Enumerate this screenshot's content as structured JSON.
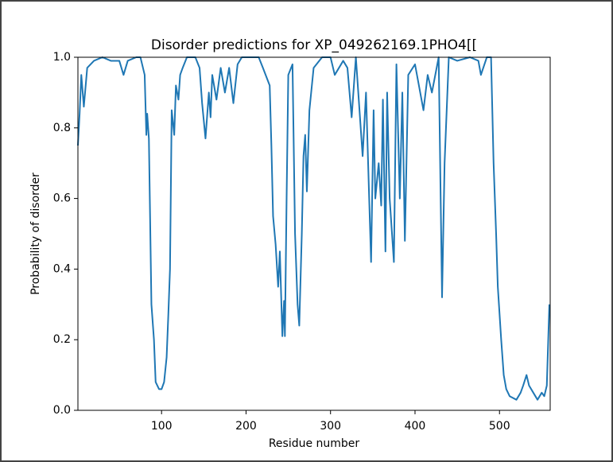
{
  "chart_data": {
    "type": "line",
    "title": "Disorder predictions for XP_049262169.1PHO4[[",
    "xlabel": "Residue number",
    "ylabel": "Probability of disorder",
    "color": "#1f77b4",
    "xlim": [
      1,
      560
    ],
    "ylim": [
      0,
      1
    ],
    "xticks": [
      100,
      200,
      300,
      400,
      500
    ],
    "yticks": [
      {
        "value": 0,
        "label": "0.0"
      },
      {
        "value": 0.2,
        "label": "0.2"
      },
      {
        "value": 0.4,
        "label": "0.4"
      },
      {
        "value": 0.6,
        "label": "0.6"
      },
      {
        "value": 0.8,
        "label": "0.8"
      },
      {
        "value": 1,
        "label": "1.0"
      }
    ],
    "x": [
      1,
      3,
      5,
      8,
      12,
      20,
      30,
      40,
      50,
      55,
      60,
      70,
      75,
      80,
      82,
      83,
      85,
      88,
      91,
      93,
      97,
      100,
      103,
      106,
      108,
      110,
      112,
      115,
      117,
      120,
      122,
      125,
      130,
      140,
      145,
      148,
      152,
      156,
      158,
      160,
      165,
      170,
      175,
      180,
      185,
      190,
      195,
      205,
      215,
      220,
      228,
      230,
      232,
      235,
      238,
      240,
      243,
      245,
      246,
      248,
      250,
      255,
      258,
      261,
      263,
      266,
      268,
      270,
      272,
      275,
      280,
      290,
      300,
      305,
      315,
      320,
      325,
      330,
      338,
      342,
      348,
      351,
      353,
      357,
      360,
      362,
      365,
      367,
      370,
      375,
      378,
      382,
      385,
      388,
      392,
      400,
      410,
      415,
      420,
      428,
      432,
      435,
      440,
      450,
      465,
      475,
      478,
      485,
      490,
      493,
      496,
      498,
      502,
      505,
      508,
      512,
      520,
      525,
      528,
      532,
      535,
      540,
      545,
      550,
      553,
      556,
      559
    ],
    "values": [
      0.75,
      0.84,
      0.95,
      0.86,
      0.97,
      0.99,
      1.0,
      0.99,
      0.99,
      0.95,
      0.99,
      1.0,
      1.0,
      0.95,
      0.78,
      0.84,
      0.77,
      0.3,
      0.2,
      0.08,
      0.06,
      0.06,
      0.08,
      0.15,
      0.27,
      0.4,
      0.85,
      0.78,
      0.92,
      0.88,
      0.95,
      0.97,
      1.0,
      1.0,
      0.97,
      0.87,
      0.77,
      0.9,
      0.83,
      0.95,
      0.88,
      0.97,
      0.9,
      0.97,
      0.87,
      0.98,
      1.0,
      1.0,
      1.0,
      0.97,
      0.92,
      0.75,
      0.55,
      0.47,
      0.35,
      0.45,
      0.21,
      0.31,
      0.21,
      0.6,
      0.95,
      0.98,
      0.5,
      0.3,
      0.24,
      0.5,
      0.72,
      0.78,
      0.62,
      0.85,
      0.97,
      1.0,
      1.0,
      0.95,
      0.99,
      0.97,
      0.83,
      1.0,
      0.72,
      0.9,
      0.42,
      0.85,
      0.6,
      0.7,
      0.58,
      0.88,
      0.45,
      0.9,
      0.6,
      0.42,
      0.98,
      0.6,
      0.9,
      0.48,
      0.95,
      0.98,
      0.85,
      0.95,
      0.9,
      1.0,
      0.32,
      0.7,
      1.0,
      0.99,
      1.0,
      0.99,
      0.95,
      1.0,
      1.0,
      0.7,
      0.5,
      0.35,
      0.2,
      0.1,
      0.06,
      0.04,
      0.03,
      0.05,
      0.07,
      0.1,
      0.07,
      0.05,
      0.03,
      0.05,
      0.04,
      0.07,
      0.3
    ]
  }
}
